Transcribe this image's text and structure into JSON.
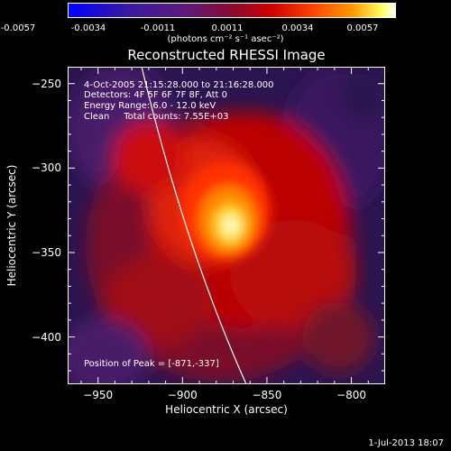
{
  "colorbar": {
    "ticks": [
      "-0.0057",
      "-0.0034",
      "-0.0011",
      "0.0011",
      "0.0034",
      "0.0057"
    ],
    "units": "(photons cm⁻² s⁻¹ asec⁻²)"
  },
  "title": "Reconstructed RHESSI Image",
  "info": {
    "time": "4-Oct-2005 21:15:28.000 to 21:16:28.000",
    "detectors": "Detectors: 4F 5F 6F 7F 8F, Att 0",
    "energy": "Energy Range: 6.0 - 12.0 keV",
    "clean": "Clean     Total counts: 7.55E+03",
    "peak": "Position of Peak = [-871,-337]"
  },
  "axes": {
    "xlabel": "Heliocentric X (arcsec)",
    "ylabel": "Heliocentric Y (arcsec)",
    "xticks": [
      "-950",
      "-900",
      "-850",
      "-800"
    ],
    "yticks": [
      "-250",
      "-300",
      "-350",
      "-400"
    ]
  },
  "footer_date": "1-Jul-2013 18:07",
  "chart_data": {
    "type": "heatmap",
    "title": "Reconstructed RHESSI Image",
    "xlabel": "Heliocentric X (arcsec)",
    "ylabel": "Heliocentric Y (arcsec)",
    "xlim": [
      -968,
      -780
    ],
    "ylim": [
      -428,
      -240
    ],
    "colorbar_range": [
      -0.0057,
      0.0057
    ],
    "peak": [
      -871,
      -337
    ]
  }
}
